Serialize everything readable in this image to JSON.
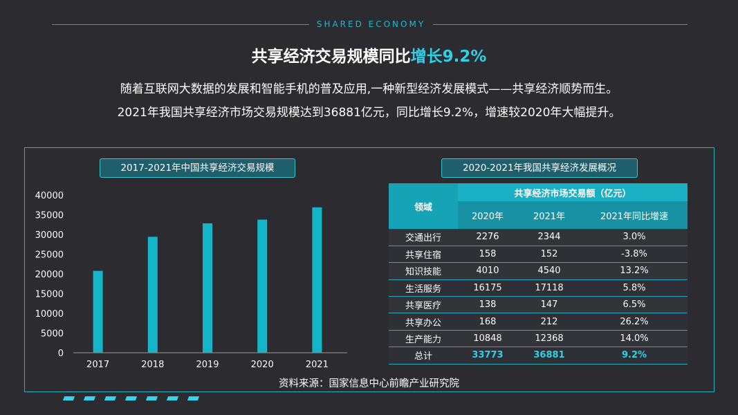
{
  "header": {
    "eyebrow": "SHARED ECONOMY",
    "title_main": "共享经济交易规模同比",
    "title_accent": "增长9.2%",
    "intro_line1": "随着互联网大数据的发展和智能手机的普及应用,一种新型经济发展模式——共享经济顺势而生。",
    "intro_line2": "2021年我国共享经济市场交易规模达到36881亿元，同比增长9.2%，增速较2020年大幅提升。"
  },
  "colors": {
    "accent": "#2fd0e8",
    "bar": "#14b5c8",
    "background": "#2b2b30",
    "table_header": "#19b0c4"
  },
  "chart_data": [
    {
      "type": "bar",
      "title": "2017-2021年中国共享经济交易规模",
      "categories": [
        "2017",
        "2018",
        "2019",
        "2020",
        "2021"
      ],
      "values": [
        20772,
        29420,
        32828,
        33773,
        36881
      ],
      "ylim": [
        0,
        40000
      ],
      "yticks": [
        "0",
        "5000",
        "10000",
        "15000",
        "20000",
        "25000",
        "30000",
        "35000",
        "40000"
      ],
      "grid": false
    },
    {
      "type": "table",
      "title": "2020-2021年我国共享经济发展概况",
      "header_field": "领域",
      "header_group": "共享经济市场交易额（亿元）",
      "columns": [
        "2020年",
        "2021年",
        "2021年同比增速"
      ],
      "rows": [
        {
          "field": "交通出行",
          "v2020": "2276",
          "v2021": "2344",
          "growth": "3.0%"
        },
        {
          "field": "共享住宿",
          "v2020": "158",
          "v2021": "152",
          "growth": "-3.8%"
        },
        {
          "field": "知识技能",
          "v2020": "4010",
          "v2021": "4540",
          "growth": "13.2%"
        },
        {
          "field": "生活服务",
          "v2020": "16175",
          "v2021": "17118",
          "growth": "5.8%"
        },
        {
          "field": "共享医疗",
          "v2020": "138",
          "v2021": "147",
          "growth": "6.5%"
        },
        {
          "field": "共享办公",
          "v2020": "168",
          "v2021": "212",
          "growth": "26.2%"
        },
        {
          "field": "生产能力",
          "v2020": "10848",
          "v2021": "12368",
          "growth": "14.0%"
        }
      ],
      "total": {
        "field": "总计",
        "v2020": "33773",
        "v2021": "36881",
        "growth": "9.2%"
      }
    }
  ],
  "footer": {
    "source": "资料来源：国家信息中心前瞻产业研究院"
  }
}
